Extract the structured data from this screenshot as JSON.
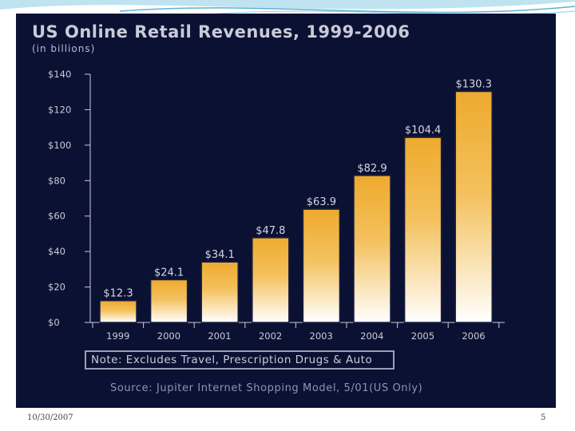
{
  "slide": {
    "date": "10/30/2007",
    "page_number": "5"
  },
  "chart_data": {
    "type": "bar",
    "title": "US Online Retail Revenues, 1999-2006",
    "subtitle": "(in billions)",
    "categories": [
      "1999",
      "2000",
      "2001",
      "2002",
      "2003",
      "2004",
      "2005",
      "2006"
    ],
    "values": [
      12.3,
      24.1,
      34.1,
      47.8,
      63.9,
      82.9,
      104.4,
      130.3
    ],
    "value_labels": [
      "$12.3",
      "$24.1",
      "$34.1",
      "$47.8",
      "$63.9",
      "$82.9",
      "$104.4",
      "$130.3"
    ],
    "yticks": [
      "$0",
      "$20",
      "$40",
      "$60",
      "$80",
      "$100",
      "$120",
      "$140"
    ],
    "ytick_values": [
      0,
      20,
      40,
      60,
      80,
      100,
      120,
      140
    ],
    "ylim": [
      0,
      140
    ],
    "grid": false,
    "bar_colors": {
      "top": "#eeaa2e",
      "bottom": "#ffffff"
    },
    "note": "Note: Excludes Travel, Prescription Drugs & Auto",
    "source": "Source: Jupiter Internet Shopping Model, 5/01(US Only)"
  },
  "colors": {
    "background": "#0b1133",
    "text": "#c9ccd8",
    "swoosh": "#7fc6e0"
  }
}
